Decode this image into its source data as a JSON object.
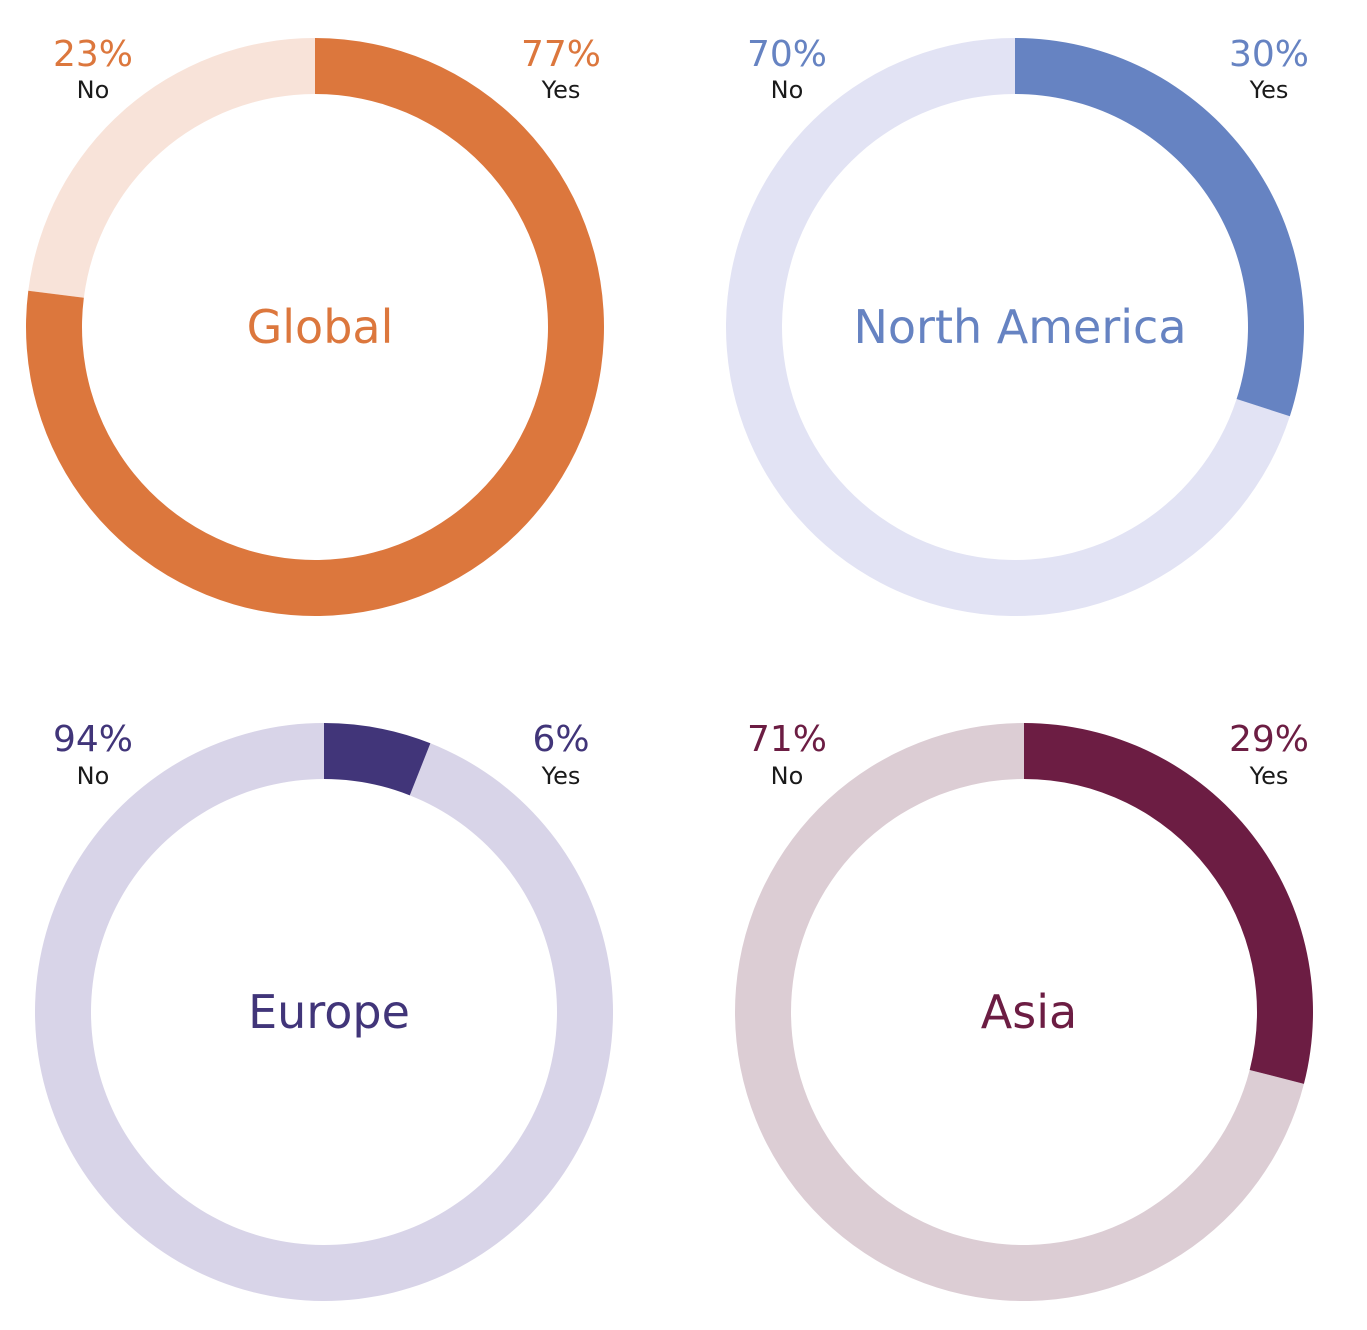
{
  "chart_data": [
    {
      "type": "pie",
      "title": "Global",
      "categories": [
        "Yes",
        "No"
      ],
      "values": [
        77,
        23
      ],
      "value_labels": [
        "77%",
        "23%"
      ],
      "colors": {
        "Yes": "#DC773D",
        "No": "#F8E3D9"
      },
      "title_color": "#DC773D"
    },
    {
      "type": "pie",
      "title": "North America",
      "categories": [
        "Yes",
        "No"
      ],
      "values": [
        30,
        70
      ],
      "value_labels": [
        "30%",
        "70%"
      ],
      "colors": {
        "Yes": "#6683C2",
        "No": "#E2E3F4"
      },
      "title_color": "#6683C2"
    },
    {
      "type": "pie",
      "title": "Europe",
      "categories": [
        "Yes",
        "No"
      ],
      "values": [
        6,
        94
      ],
      "value_labels": [
        "6%",
        "94%"
      ],
      "colors": {
        "Yes": "#413579",
        "No": "#D8D4E8"
      },
      "title_color": "#413579"
    },
    {
      "type": "pie",
      "title": "Asia",
      "categories": [
        "Yes",
        "No"
      ],
      "values": [
        29,
        71
      ],
      "value_labels": [
        "29%",
        "71%"
      ],
      "colors": {
        "Yes": "#6C1D43",
        "No": "#DCCDD4"
      },
      "title_color": "#6C1D43"
    }
  ]
}
